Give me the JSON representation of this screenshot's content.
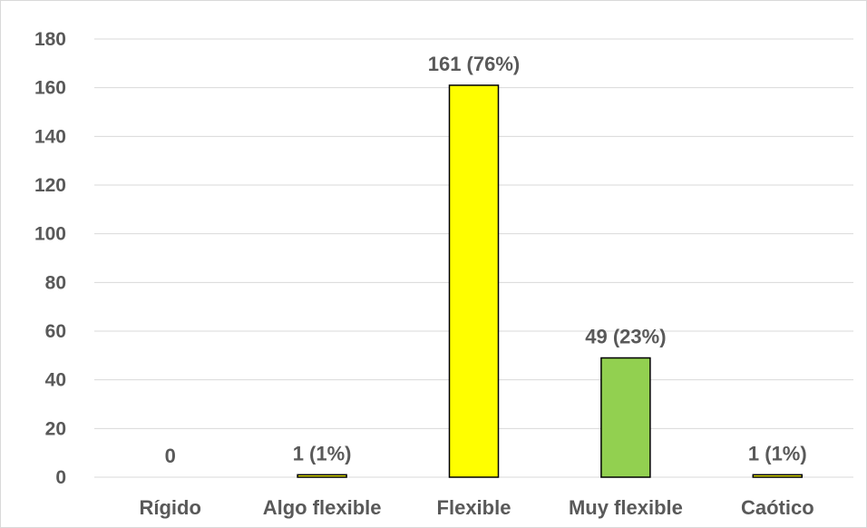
{
  "chart_data": {
    "type": "bar",
    "categories": [
      "Rígido",
      "Algo flexible",
      "Flexible",
      "Muy flexible",
      "Caótico"
    ],
    "values": [
      0,
      1,
      161,
      49,
      1
    ],
    "data_labels": [
      "0",
      "1 (1%)",
      "161 (76%)",
      "49 (23%)",
      "1 (1%)"
    ],
    "colors": [
      "#FFFF00",
      "#FFFF00",
      "#FFFF00",
      "#92D050",
      "#FFFF00"
    ],
    "ylim": [
      0,
      180
    ],
    "yticks": [
      0,
      20,
      40,
      60,
      80,
      100,
      120,
      140,
      160,
      180
    ],
    "grid": true,
    "title": "",
    "xlabel": "",
    "ylabel": ""
  }
}
